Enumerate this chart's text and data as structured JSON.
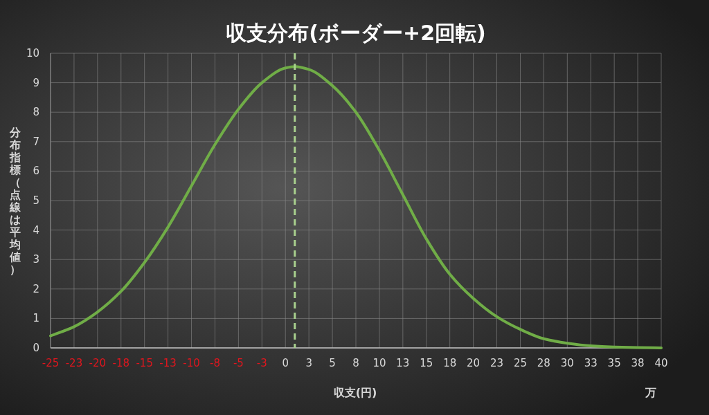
{
  "chart_data": {
    "type": "line",
    "title": "収支分布(ボーダー+2回転)",
    "xlabel": "収支(円)",
    "ylabel": "分布指標（点線は平均値）",
    "annotations": [
      "万"
    ],
    "x": [
      -25,
      -22.5,
      -20,
      -17.5,
      -15,
      -12.5,
      -10,
      -7.5,
      -5,
      -2.5,
      0,
      1,
      2.5,
      5,
      7.5,
      10,
      12.5,
      15,
      17.5,
      20,
      22.5,
      25,
      27.5,
      30,
      32.5,
      35,
      37.5,
      40
    ],
    "series": [
      {
        "color": "#70ad47",
        "values": [
          0.41,
          0.72,
          1.22,
          1.92,
          2.9,
          4.1,
          5.5,
          6.9,
          8.1,
          9.0,
          9.5,
          9.55,
          9.45,
          8.9,
          8.0,
          6.7,
          5.2,
          3.7,
          2.5,
          1.68,
          1.06,
          0.63,
          0.31,
          0.16,
          0.07,
          0.03,
          0.01,
          0.0
        ]
      }
    ],
    "xlim": [
      -25,
      40
    ],
    "xticks": [
      -25,
      {
        "value": -22.5,
        "label": "-23"
      },
      -20,
      {
        "value": -17.5,
        "label": "-18"
      },
      -15,
      {
        "value": -12.5,
        "label": "-13"
      },
      -10,
      {
        "value": -7.5,
        "label": "-8"
      },
      -5,
      {
        "value": -2.5,
        "label": "-3"
      },
      0,
      {
        "value": 2.5,
        "label": "3"
      },
      5,
      {
        "value": 7.5,
        "label": "8"
      },
      10,
      {
        "value": 12.5,
        "label": "13"
      },
      15,
      {
        "value": 17.5,
        "label": "18"
      },
      20,
      {
        "value": 22.5,
        "label": "23"
      },
      25,
      {
        "value": 27.5,
        "label": "28"
      },
      30,
      {
        "value": 32.5,
        "label": "33"
      },
      35,
      {
        "value": 37.5,
        "label": "38"
      },
      40
    ],
    "ylim": [
      0,
      10
    ],
    "yticks": [
      0,
      1,
      2,
      3,
      4,
      5,
      6,
      7,
      8,
      9,
      10
    ],
    "grid": true,
    "line_style": "solid",
    "marker": "none",
    "ref_lines": [
      {
        "axis": "x",
        "value": 1,
        "color": "#a9d18e",
        "line_style": "dashed"
      }
    ]
  }
}
